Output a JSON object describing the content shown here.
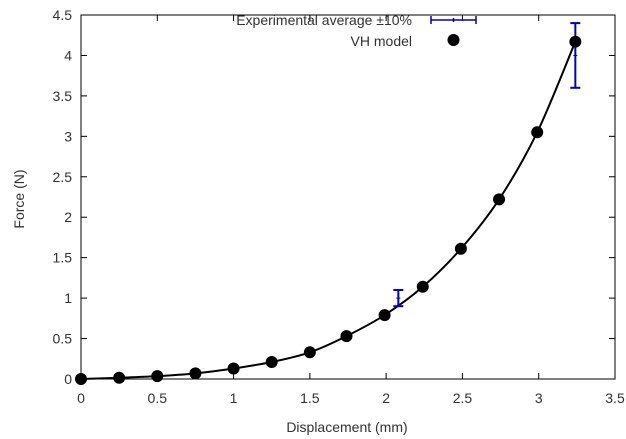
{
  "chart_data": {
    "type": "scatter",
    "title": "",
    "xlabel": "Displacement (mm)",
    "ylabel": "Force (N)",
    "xlim": [
      0,
      3.5
    ],
    "ylim": [
      0,
      4.5
    ],
    "x_ticks": [
      "0",
      "0.5",
      "1",
      "1.5",
      "2",
      "2.5",
      "3",
      "3.5"
    ],
    "y_ticks": [
      "0",
      "0.5",
      "1",
      "1.5",
      "2",
      "2.5",
      "3",
      "3.5",
      "4",
      "4.5"
    ],
    "legend_position": "top-right",
    "grid": false,
    "series": [
      {
        "name": "Experimental average ±10%",
        "kind": "errorbar",
        "color": "#0000cc",
        "points": [
          {
            "x": 2.08,
            "y": 1.0,
            "low": 0.9,
            "high": 1.1
          },
          {
            "x": 3.24,
            "y": 4.0,
            "low": 3.6,
            "high": 4.4
          }
        ]
      },
      {
        "name": "VH  model",
        "kind": "points",
        "color": "#000000",
        "x": [
          0.0,
          0.25,
          0.5,
          0.75,
          1.0,
          1.25,
          1.5,
          1.74,
          1.99,
          2.24,
          2.49,
          2.74,
          2.99,
          3.24
        ],
        "y": [
          0.0,
          0.015,
          0.035,
          0.07,
          0.13,
          0.21,
          0.33,
          0.53,
          0.79,
          1.14,
          1.61,
          2.22,
          3.05,
          4.17
        ]
      }
    ]
  }
}
